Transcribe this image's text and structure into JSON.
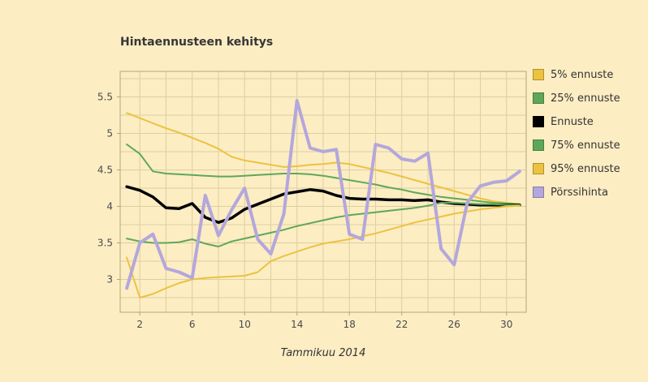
{
  "page": {
    "background": "#fcedc3"
  },
  "chart_data": {
    "type": "line",
    "title": "Hintaennusteen kehitys",
    "xlabel": "Tammikuu 2014",
    "ylabel": "",
    "legend_position": "right",
    "xlim": [
      0.5,
      31.5
    ],
    "ylim": [
      2.55,
      5.85
    ],
    "xticks": [
      2,
      6,
      10,
      14,
      18,
      22,
      26,
      30
    ],
    "yticks": [
      3,
      3.5,
      4,
      4.5,
      5,
      5.5
    ],
    "grid": {
      "x_start": 2,
      "x_step": 2,
      "y_start": 2.75,
      "y_step": 0.25
    },
    "style": {
      "grid_color": "#ddcf9f",
      "border_color": "#b3a678",
      "tick_color": "#4a4a4a"
    },
    "x": [
      1,
      2,
      3,
      4,
      5,
      6,
      7,
      8,
      9,
      10,
      11,
      12,
      13,
      14,
      15,
      16,
      17,
      18,
      19,
      20,
      21,
      22,
      23,
      24,
      25,
      26,
      27,
      28,
      29,
      30,
      31
    ],
    "series": [
      {
        "name": "5% ennuste",
        "color": "#edc240",
        "width": 2,
        "values": [
          5.28,
          5.21,
          5.14,
          5.07,
          5.01,
          4.94,
          4.87,
          4.79,
          4.68,
          4.63,
          4.6,
          4.57,
          4.54,
          4.55,
          4.57,
          4.58,
          4.6,
          4.58,
          4.54,
          4.5,
          4.46,
          4.41,
          4.36,
          4.31,
          4.26,
          4.21,
          4.16,
          4.11,
          4.07,
          4.05,
          4.03
        ]
      },
      {
        "name": "25% ennuste",
        "color": "#5fa758",
        "width": 2,
        "values": [
          4.85,
          4.72,
          4.48,
          4.45,
          4.44,
          4.43,
          4.42,
          4.41,
          4.41,
          4.42,
          4.43,
          4.44,
          4.45,
          4.45,
          4.44,
          4.42,
          4.39,
          4.36,
          4.33,
          4.3,
          4.26,
          4.23,
          4.19,
          4.16,
          4.13,
          4.11,
          4.09,
          4.07,
          4.05,
          4.04,
          4.03
        ]
      },
      {
        "name": "Ennuste",
        "color": "#000000",
        "width": 3.5,
        "values": [
          4.27,
          4.22,
          4.13,
          3.98,
          3.97,
          4.04,
          3.85,
          3.78,
          3.84,
          3.96,
          4.03,
          4.1,
          4.17,
          4.2,
          4.23,
          4.21,
          4.15,
          4.11,
          4.1,
          4.1,
          4.09,
          4.09,
          4.08,
          4.09,
          4.06,
          4.04,
          4.03,
          4.02,
          4.02,
          4.02,
          4.02
        ]
      },
      {
        "name": "75% ennuste",
        "color": "#5fa758",
        "width": 2,
        "values": [
          3.56,
          3.52,
          3.5,
          3.5,
          3.51,
          3.55,
          3.49,
          3.45,
          3.52,
          3.56,
          3.6,
          3.64,
          3.68,
          3.73,
          3.77,
          3.81,
          3.85,
          3.88,
          3.9,
          3.92,
          3.94,
          3.96,
          3.98,
          4.01,
          4.05,
          4.05,
          4.04,
          4.03,
          4.03,
          4.02,
          4.02
        ]
      },
      {
        "name": "95% ennuste",
        "color": "#edc240",
        "width": 2,
        "values": [
          3.3,
          2.75,
          2.8,
          2.88,
          2.95,
          3.0,
          3.02,
          3.03,
          3.04,
          3.05,
          3.1,
          3.25,
          3.32,
          3.38,
          3.44,
          3.49,
          3.52,
          3.55,
          3.59,
          3.63,
          3.68,
          3.73,
          3.78,
          3.82,
          3.86,
          3.9,
          3.93,
          3.96,
          3.98,
          4.0,
          4.01
        ]
      },
      {
        "name": "Pörssihinta",
        "color": "#b4a7dc",
        "width": 4,
        "values": [
          2.88,
          3.5,
          3.62,
          3.15,
          3.1,
          3.02,
          4.15,
          3.6,
          3.95,
          4.25,
          3.55,
          3.35,
          3.9,
          5.45,
          4.8,
          4.75,
          4.78,
          3.62,
          3.55,
          4.85,
          4.8,
          4.65,
          4.62,
          4.73,
          3.42,
          3.2,
          4.05,
          4.28,
          4.33,
          4.35,
          4.48
        ]
      }
    ]
  }
}
